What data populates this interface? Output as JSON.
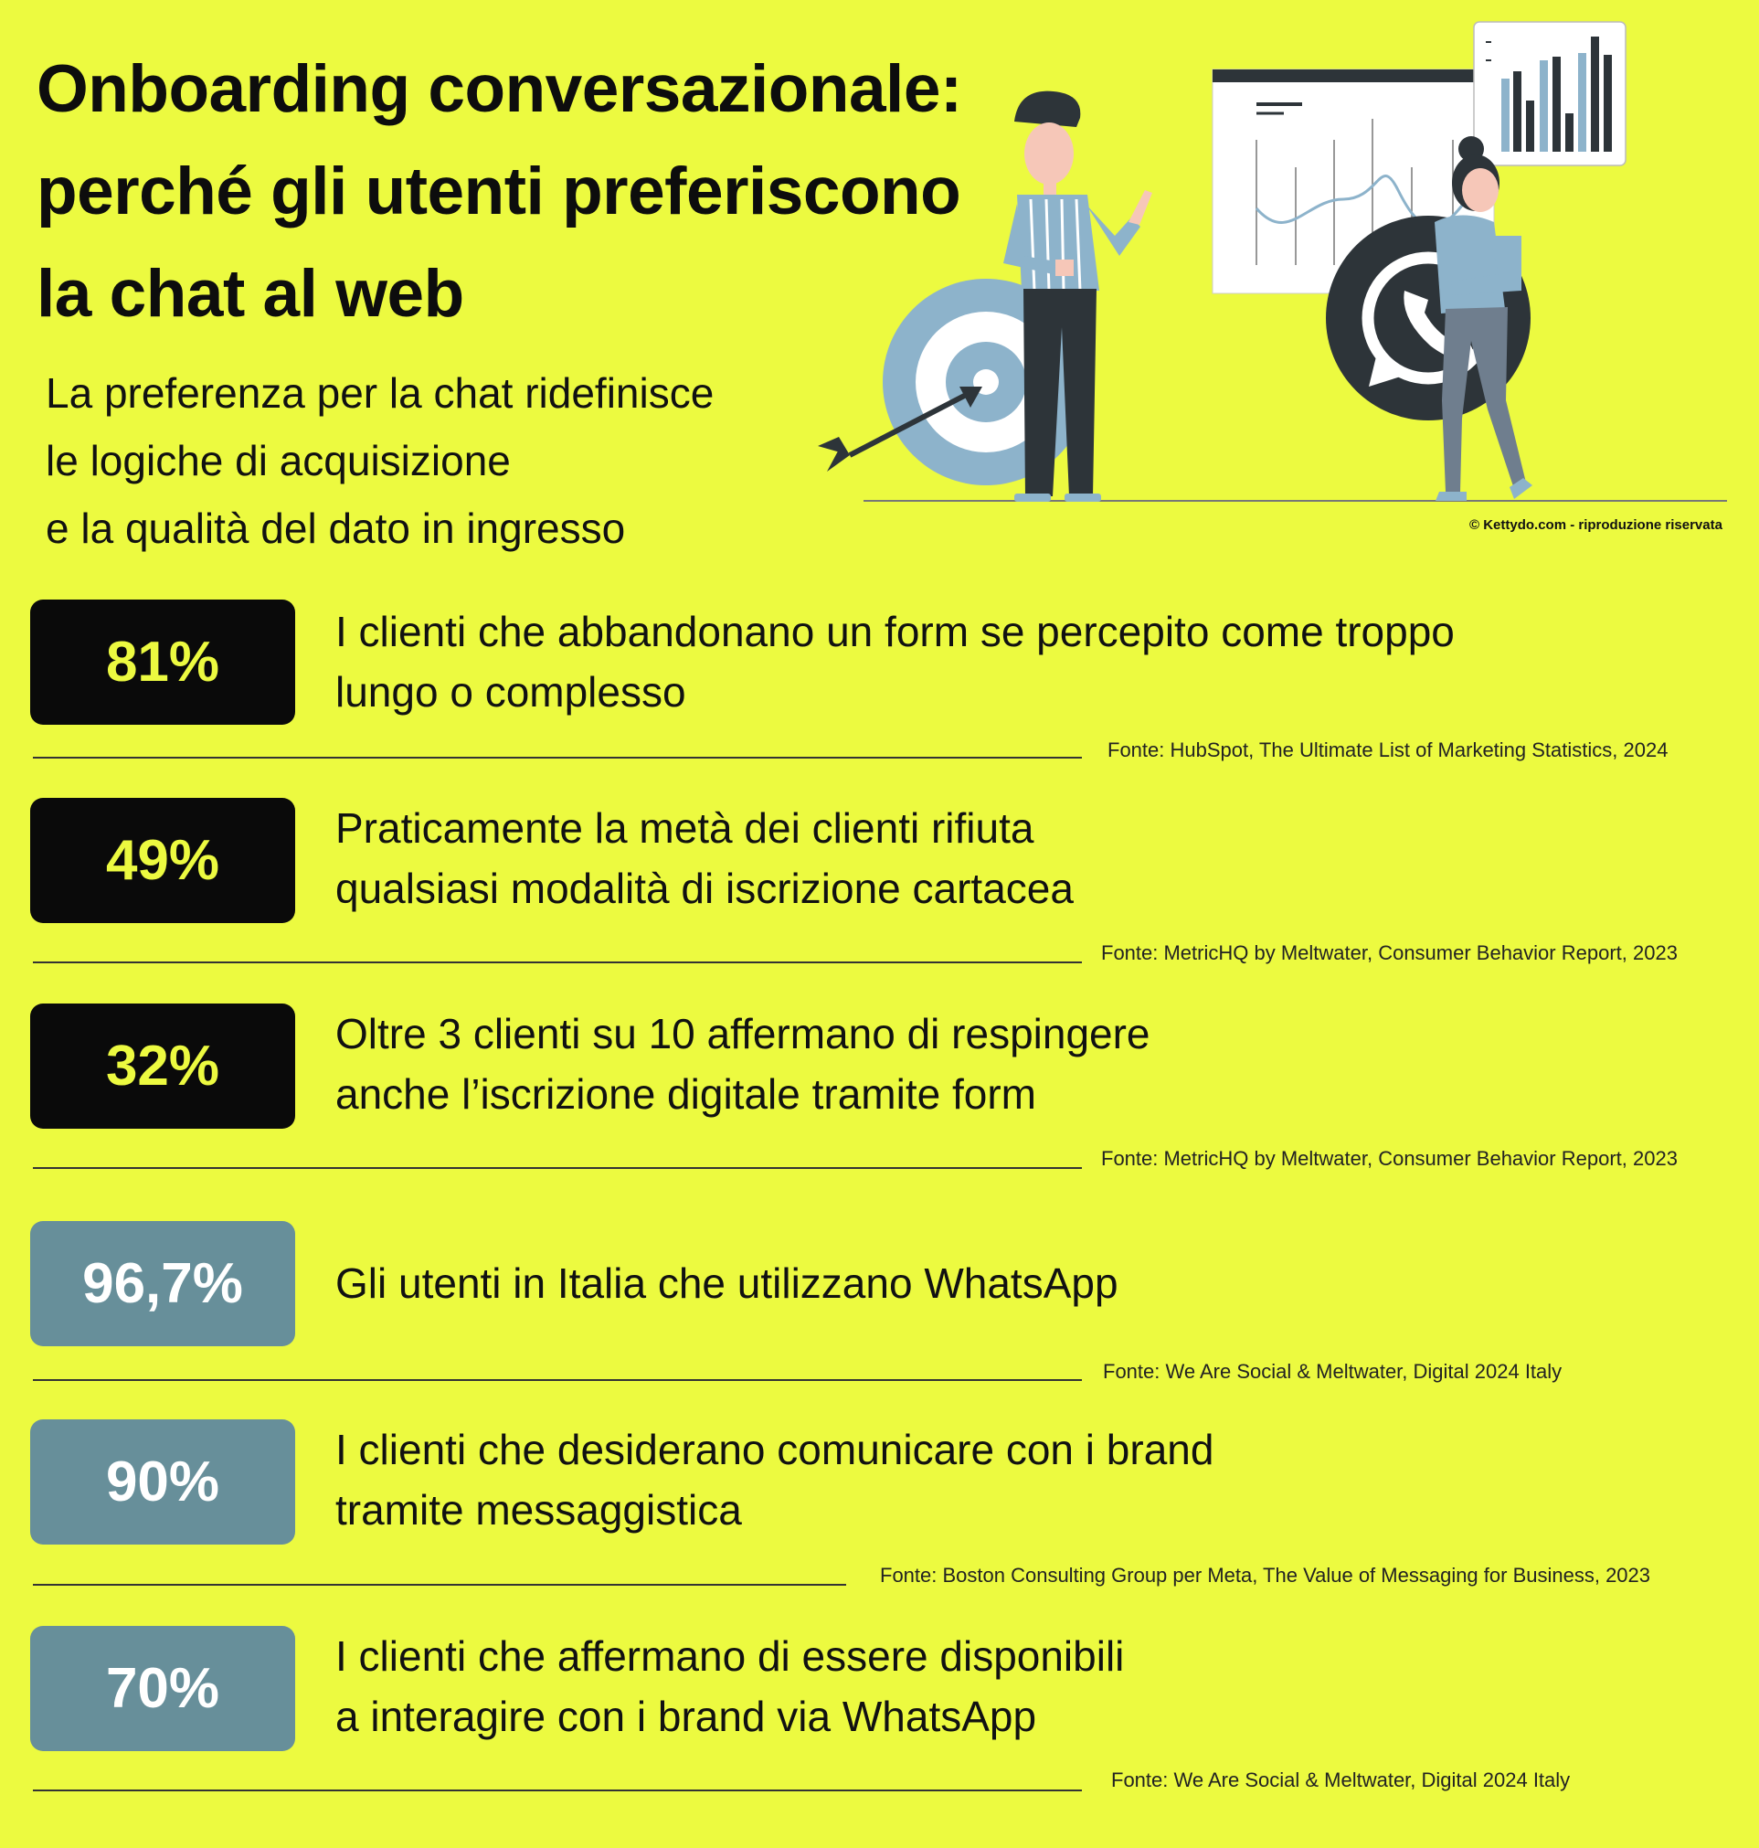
{
  "header": {
    "title_lines": [
      "Onboarding conversazionale:",
      "perché gli utenti preferiscono",
      "la chat al web"
    ],
    "subtitle_lines": [
      "La preferenza per la chat ridefinisce",
      "le logiche di acquisizione",
      "e la qualità del dato in ingresso"
    ],
    "copyright": "© Kettydo.com - riproduzione riservata"
  },
  "illustration": {
    "icons": [
      "target-icon",
      "arrow-icon",
      "line-chart-board-icon",
      "bar-chart-card-icon",
      "whatsapp-icon",
      "man-figure",
      "woman-figure"
    ]
  },
  "colors": {
    "background": "#ecfa40",
    "badge_dark": "#0a0a0a",
    "badge_dark_text": "#ecfa40",
    "badge_teal": "#678f9a",
    "badge_teal_text": "#ffffff"
  },
  "stats": [
    {
      "value": "81%",
      "lines": [
        "I clienti che abbandonano un form se percepito come troppo",
        "lungo o complesso"
      ],
      "source": "Fonte: HubSpot, The Ultimate List of Marketing Statistics, 2024"
    },
    {
      "value": "49%",
      "lines": [
        "Praticamente la metà dei clienti rifiuta",
        "qualsiasi modalità di iscrizione cartacea"
      ],
      "source": "Fonte: MetricHQ by Meltwater, Consumer Behavior Report, 2023"
    },
    {
      "value": "32%",
      "lines": [
        "Oltre 3 clienti su 10 affermano di respingere",
        "anche l’iscrizione digitale tramite form"
      ],
      "source": "Fonte: MetricHQ by Meltwater, Consumer Behavior Report, 2023"
    },
    {
      "value": "96,7%",
      "lines": [
        "Gli utenti in Italia che utilizzano WhatsApp",
        ""
      ],
      "source": "Fonte: We Are Social & Meltwater, Digital 2024 Italy"
    },
    {
      "value": "90%",
      "lines": [
        "I clienti che desiderano comunicare con i brand",
        "tramite messaggistica"
      ],
      "source": "Fonte: Boston Consulting Group per Meta, The Value of Messaging for Business, 2023"
    },
    {
      "value": "70%",
      "lines": [
        "I clienti che affermano di essere disponibili",
        "a interagire con i brand via WhatsApp"
      ],
      "source": "Fonte: We Are Social & Meltwater, Digital 2024 Italy"
    }
  ]
}
